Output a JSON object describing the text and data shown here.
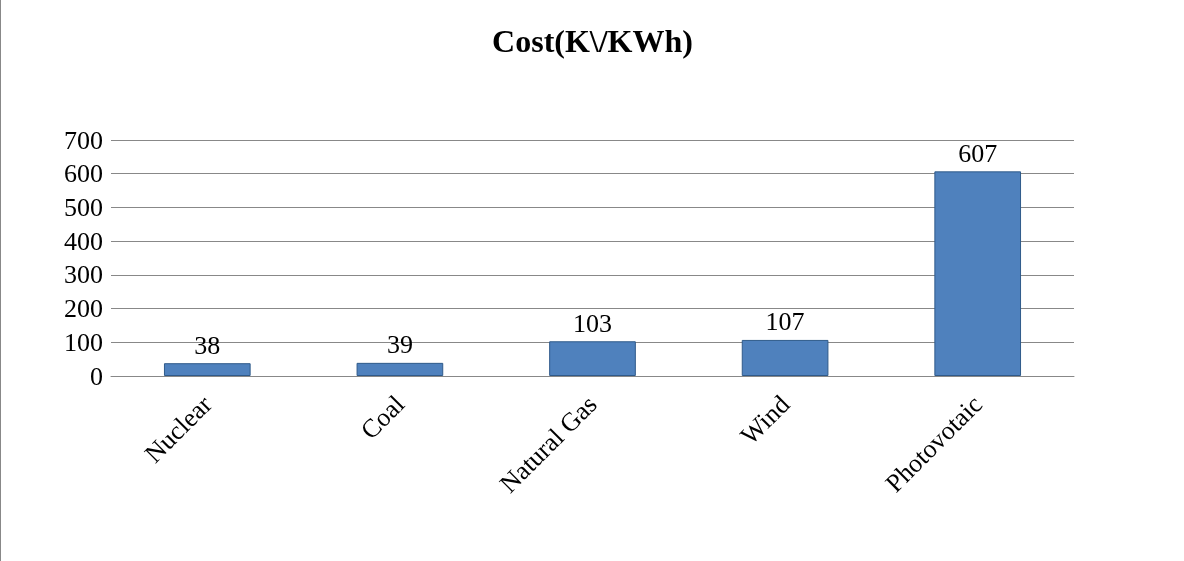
{
  "chart_data": {
    "type": "bar",
    "title": "Cost(K\\/KWh)",
    "categories": [
      "Nuclear",
      "Coal",
      "Natural Gas",
      "Wind",
      "Photovotaic"
    ],
    "values": [
      38,
      39,
      103,
      107,
      607
    ],
    "color": "#4f81bd",
    "ylim": [
      0,
      700
    ],
    "yticks": [
      0,
      100,
      200,
      300,
      400,
      500,
      600,
      700
    ],
    "grid": "y",
    "data_labels": true
  }
}
